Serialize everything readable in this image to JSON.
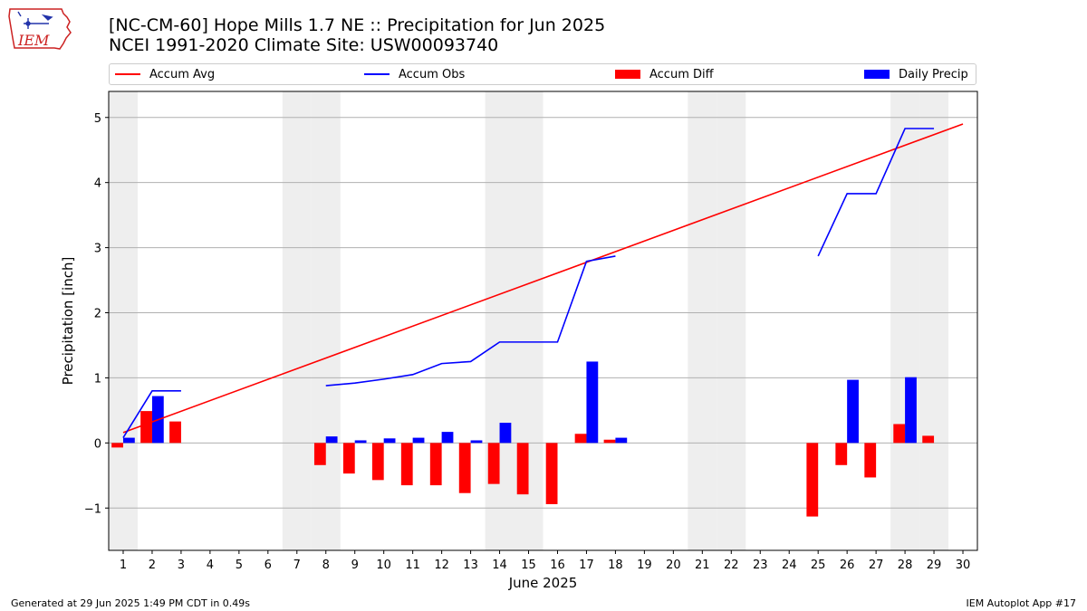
{
  "header": {
    "title_line1": "[NC-CM-60] Hope Mills 1.7 NE :: Precipitation for Jun 2025",
    "title_line2": "NCEI 1991-2020 Climate Site: USW00093740"
  },
  "logo": {
    "text": "IEM",
    "icon": "iem-iowa-logo",
    "color": "#cc2222"
  },
  "footer": {
    "left": "Generated at 29 Jun 2025 1:49 PM CDT in 0.49s",
    "right": "IEM Autoplot App #17"
  },
  "chart_data": {
    "type": "bar",
    "xlabel": "June 2025",
    "ylabel": "Precipitation [inch]",
    "xlim": [
      0.5,
      30.5
    ],
    "ylim": [
      -1.65,
      5.4
    ],
    "x_ticks": [
      1,
      2,
      3,
      4,
      5,
      6,
      7,
      8,
      9,
      10,
      11,
      12,
      13,
      14,
      15,
      16,
      17,
      18,
      19,
      20,
      21,
      22,
      23,
      24,
      25,
      26,
      27,
      28,
      29,
      30
    ],
    "y_ticks": [
      -1,
      0,
      1,
      2,
      3,
      4,
      5
    ],
    "y_tick_labels": [
      "−1",
      "0",
      "1",
      "2",
      "3",
      "4",
      "5"
    ],
    "grid": "horizontal",
    "legend_placement": "top",
    "weekend_days": [
      1,
      7,
      8,
      14,
      15,
      21,
      22,
      28,
      29
    ],
    "weekend_color": "#eeeeee",
    "series": [
      {
        "name": "Accum Avg",
        "kind": "line",
        "color": "#ff0000",
        "x": [
          1,
          30
        ],
        "y": [
          0.16,
          4.9
        ]
      },
      {
        "name": "Accum Obs",
        "kind": "line",
        "color": "#0000ff",
        "segments": [
          {
            "x": [
              1,
              2,
              3
            ],
            "y": [
              0.08,
              0.8,
              0.8
            ]
          },
          {
            "x": [
              8,
              9,
              10,
              11,
              12,
              13,
              14,
              15,
              16,
              17,
              18
            ],
            "y": [
              0.88,
              0.92,
              0.98,
              1.05,
              1.22,
              1.25,
              1.55,
              1.55,
              1.55,
              2.79,
              2.87
            ]
          },
          {
            "x": [
              25,
              26,
              27,
              28,
              29
            ],
            "y": [
              2.87,
              3.83,
              3.83,
              4.83,
              4.83
            ]
          }
        ]
      },
      {
        "name": "Accum Diff",
        "kind": "bar",
        "color": "#ff0000",
        "offset": -0.2,
        "x": [
          1,
          2,
          3,
          8,
          9,
          10,
          11,
          12,
          13,
          14,
          15,
          16,
          17,
          18,
          25,
          26,
          27,
          28,
          29
        ],
        "y": [
          -0.07,
          0.49,
          0.33,
          -0.34,
          -0.47,
          -0.57,
          -0.65,
          -0.65,
          -0.77,
          -0.63,
          -0.79,
          -0.94,
          0.14,
          0.05,
          -1.13,
          -0.34,
          -0.53,
          0.29,
          0.11
        ]
      },
      {
        "name": "Daily Precip",
        "kind": "bar",
        "color": "#0000ff",
        "offset": 0.2,
        "x": [
          1,
          2,
          8,
          9,
          10,
          11,
          12,
          13,
          14,
          17,
          18,
          26,
          28
        ],
        "y": [
          0.08,
          0.72,
          0.1,
          0.04,
          0.07,
          0.08,
          0.17,
          0.04,
          0.31,
          1.25,
          0.08,
          0.97,
          1.01
        ]
      }
    ]
  }
}
